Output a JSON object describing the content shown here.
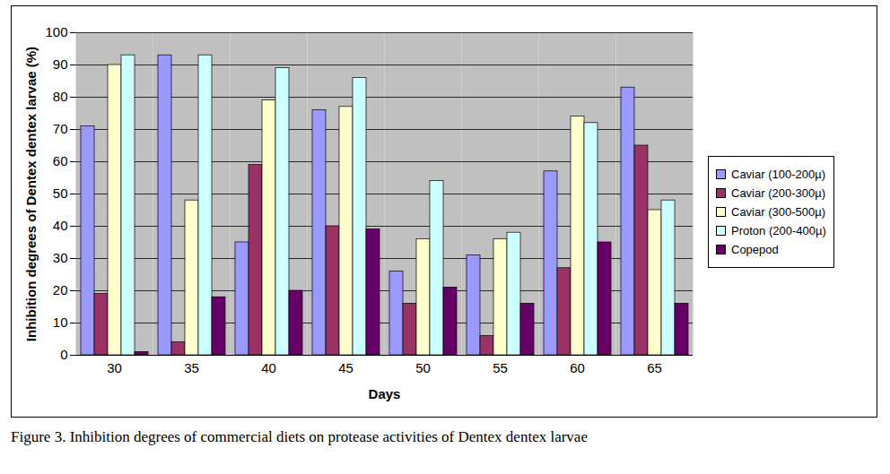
{
  "chart_data": {
    "type": "bar",
    "caption": "Figure 3. Inhibition degrees of commercial diets on protease activities of Dentex dentex larvae",
    "x_label": "Days",
    "y_label": "Inhibition degrees of Dentex dentex larvae (%)",
    "categories": [
      30,
      35,
      40,
      45,
      50,
      55,
      60,
      65
    ],
    "series": [
      {
        "name": "Caviar (100-200µ)",
        "color": "#9999ff",
        "values": [
          71,
          93,
          35,
          76,
          26,
          31,
          57,
          83
        ]
      },
      {
        "name": "Caviar (200-300µ)",
        "color": "#993366",
        "values": [
          19,
          4,
          59,
          40,
          16,
          6,
          27,
          65
        ]
      },
      {
        "name": "Caviar (300-500µ)",
        "color": "#ffffcc",
        "values": [
          90,
          48,
          79,
          77,
          36,
          36,
          74,
          45
        ]
      },
      {
        "name": "Proton (200-400µ)",
        "color": "#ccffff",
        "values": [
          93,
          93,
          89,
          86,
          54,
          38,
          72,
          48
        ]
      },
      {
        "name": "Copepod",
        "color": "#660066",
        "values": [
          1,
          18,
          20,
          39,
          21,
          16,
          35,
          16
        ]
      }
    ],
    "ylim": [
      0,
      100
    ],
    "yticks": [
      0,
      10,
      20,
      30,
      40,
      50,
      60,
      70,
      80,
      90,
      100
    ],
    "grid": true,
    "legend": "right"
  }
}
